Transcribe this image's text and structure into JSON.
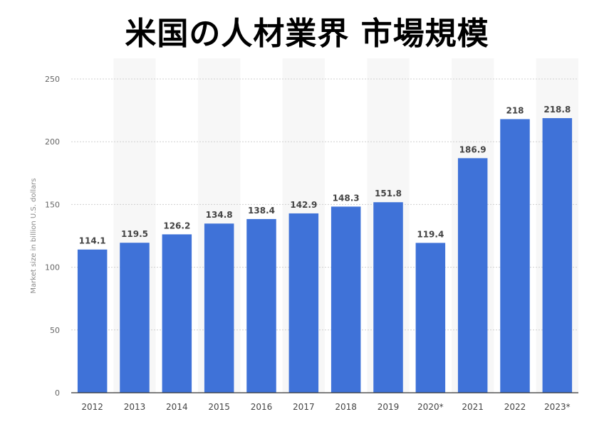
{
  "chart_data": {
    "type": "bar",
    "title": "米国の人材業界 市場規模",
    "ylabel": "Market size in billion U.S. dollars",
    "xlabel": "",
    "categories": [
      "2012",
      "2013",
      "2014",
      "2015",
      "2016",
      "2017",
      "2018",
      "2019",
      "2020*",
      "2021",
      "2022",
      "2023*"
    ],
    "values": [
      114.1,
      119.5,
      126.2,
      134.8,
      138.4,
      142.9,
      148.3,
      151.8,
      119.4,
      186.9,
      218,
      218.8
    ],
    "data_labels": [
      "114.1",
      "119.5",
      "126.2",
      "134.8",
      "138.4",
      "142.9",
      "148.3",
      "151.8",
      "119.4",
      "186.9",
      "218",
      "218.8"
    ],
    "ylim": [
      0,
      250
    ],
    "yticks": [
      "0",
      "50",
      "100",
      "150",
      "200",
      "250"
    ],
    "grid": true,
    "legend": "none",
    "colors": {
      "bar": "#3f72d8",
      "grid": "#cfcfcf",
      "band": "#f7f7f7"
    }
  }
}
